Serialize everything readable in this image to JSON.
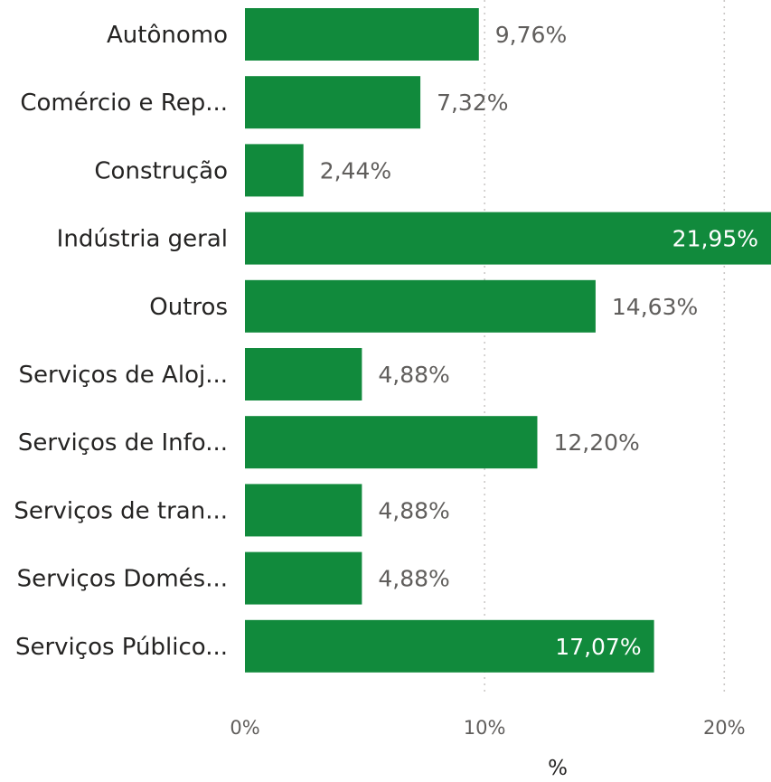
{
  "chart_data": {
    "type": "bar",
    "orientation": "horizontal",
    "categories": [
      "Autônomo",
      "Comércio e Rep...",
      "Construção",
      "Indústria geral",
      "Outros",
      "Serviços de Aloj...",
      "Serviços de Info...",
      "Serviços de tran...",
      "Serviços Domés...",
      "Serviços Público..."
    ],
    "values": [
      9.76,
      7.32,
      2.44,
      21.95,
      14.63,
      4.88,
      12.2,
      4.88,
      4.88,
      17.07
    ],
    "data_labels": [
      "9,76%",
      "7,32%",
      "2,44%",
      "21,95%",
      "14,63%",
      "4,88%",
      "12,20%",
      "4,88%",
      "4,88%",
      "17,07%"
    ],
    "xlabel": "%",
    "ylabel": "",
    "xlim": [
      0,
      21.95
    ],
    "x_ticks": [
      0,
      10,
      20
    ],
    "x_tick_labels": [
      "0%",
      "10%",
      "20%"
    ],
    "grid": true,
    "bar_color": "#118a3c"
  }
}
